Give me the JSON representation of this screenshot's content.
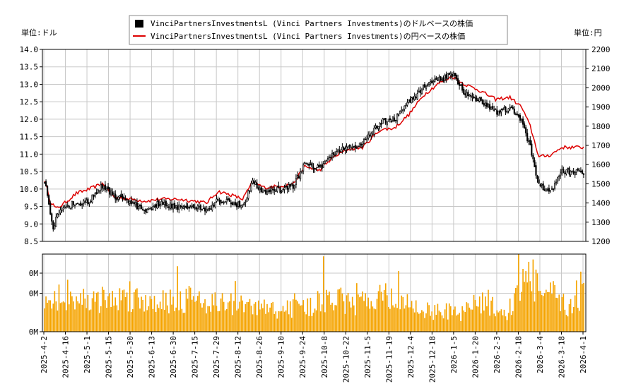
{
  "chart_data": [
    {
      "type": "candlestick",
      "legend": {
        "placement": "top-center",
        "items": [
          {
            "label": "VinciPartnersInvestmentsL (Vinci Partners Investments)のドルベースの株価",
            "color": "#000000",
            "marker": "square"
          },
          {
            "label": "VinciPartnersInvestmentsL (Vinci Partners Investments)の円ベースの株価",
            "color": "#dd0000",
            "marker": "line"
          }
        ]
      },
      "y_left_label": "単位:ドル",
      "y_right_label": "単位:円",
      "y_left_ticks": [
        "8.5",
        "9.0",
        "9.5",
        "10.0",
        "10.5",
        "11.0",
        "11.5",
        "12.0",
        "12.5",
        "13.0",
        "13.5",
        "14.0"
      ],
      "y_left_range": [
        8.5,
        14.0
      ],
      "y_right_ticks": [
        "1200",
        "1300",
        "1400",
        "1500",
        "1600",
        "1700",
        "1800",
        "1900",
        "2000",
        "2100",
        "2200"
      ],
      "y_right_range": [
        1200,
        2200
      ],
      "x_tick_labels": [
        "2025-4-2",
        "2025-4-16",
        "2025-5-1",
        "2025-5-15",
        "2025-5-30",
        "2025-6-13",
        "2025-6-30",
        "2025-7-15",
        "2025-7-29",
        "2025-8-12",
        "2025-8-26",
        "2025-9-10",
        "2025-9-24",
        "2025-10-8",
        "2025-10-22",
        "2025-11-5",
        "2025-11-19",
        "2025-12-4",
        "2025-12-18",
        "2026-1-5",
        "2026-1-20",
        "2026-2-3",
        "2026-2-18",
        "2026-3-4",
        "2026-3-18",
        "2026-4-1"
      ],
      "usd_close_keypoints": [
        [
          0,
          10.2
        ],
        [
          3,
          9.6
        ],
        [
          6,
          8.9
        ],
        [
          9,
          9.3
        ],
        [
          14,
          9.4
        ],
        [
          20,
          9.6
        ],
        [
          30,
          9.6
        ],
        [
          40,
          10.1
        ],
        [
          48,
          9.8
        ],
        [
          60,
          9.6
        ],
        [
          70,
          9.4
        ],
        [
          80,
          9.6
        ],
        [
          92,
          9.5
        ],
        [
          104,
          9.5
        ],
        [
          112,
          9.4
        ],
        [
          120,
          9.7
        ],
        [
          130,
          9.6
        ],
        [
          137,
          9.5
        ],
        [
          144,
          10.2
        ],
        [
          152,
          9.9
        ],
        [
          165,
          10.0
        ],
        [
          172,
          10.1
        ],
        [
          180,
          10.7
        ],
        [
          190,
          10.6
        ],
        [
          200,
          11.0
        ],
        [
          210,
          11.2
        ],
        [
          220,
          11.3
        ],
        [
          232,
          11.9
        ],
        [
          242,
          12.0
        ],
        [
          252,
          12.5
        ],
        [
          262,
          12.9
        ],
        [
          272,
          13.1
        ],
        [
          282,
          13.3
        ],
        [
          290,
          12.8
        ],
        [
          300,
          12.6
        ],
        [
          312,
          12.2
        ],
        [
          322,
          12.3
        ],
        [
          330,
          12.0
        ],
        [
          336,
          11.2
        ],
        [
          342,
          10.1
        ],
        [
          350,
          9.9
        ],
        [
          358,
          10.5
        ]
      ],
      "jpy_close_keypoints": [
        [
          0,
          1520
        ],
        [
          4,
          1410
        ],
        [
          8,
          1370
        ],
        [
          14,
          1400
        ],
        [
          22,
          1450
        ],
        [
          30,
          1470
        ],
        [
          40,
          1500
        ],
        [
          48,
          1430
        ],
        [
          60,
          1420
        ],
        [
          70,
          1410
        ],
        [
          80,
          1420
        ],
        [
          92,
          1420
        ],
        [
          104,
          1410
        ],
        [
          112,
          1400
        ],
        [
          120,
          1460
        ],
        [
          130,
          1440
        ],
        [
          137,
          1420
        ],
        [
          144,
          1510
        ],
        [
          152,
          1480
        ],
        [
          165,
          1490
        ],
        [
          172,
          1500
        ],
        [
          180,
          1590
        ],
        [
          190,
          1570
        ],
        [
          200,
          1640
        ],
        [
          210,
          1680
        ],
        [
          220,
          1690
        ],
        [
          232,
          1780
        ],
        [
          242,
          1790
        ],
        [
          252,
          1860
        ],
        [
          262,
          1960
        ],
        [
          272,
          2020
        ],
        [
          282,
          2060
        ],
        [
          290,
          2020
        ],
        [
          300,
          1990
        ],
        [
          312,
          1940
        ],
        [
          322,
          1950
        ],
        [
          330,
          1900
        ],
        [
          336,
          1800
        ],
        [
          342,
          1640
        ],
        [
          350,
          1650
        ],
        [
          358,
          1690
        ]
      ],
      "volume_axis": {
        "tick_labels": [
          "0M",
          "0M",
          "0M"
        ]
      },
      "volume_bars_keypoints": [
        [
          0,
          0.4
        ],
        [
          10,
          0.5
        ],
        [
          12,
          0.62
        ],
        [
          30,
          0.48
        ],
        [
          42,
          0.52
        ],
        [
          56,
          0.55
        ],
        [
          76,
          0.5
        ],
        [
          104,
          0.54
        ],
        [
          124,
          0.45
        ],
        [
          162,
          0.35
        ],
        [
          182,
          0.4
        ],
        [
          200,
          0.55
        ],
        [
          216,
          0.4
        ],
        [
          228,
          0.62
        ],
        [
          262,
          0.35
        ],
        [
          290,
          0.3
        ],
        [
          300,
          0.5
        ],
        [
          320,
          0.3
        ],
        [
          330,
          0.75
        ],
        [
          334,
          1.0
        ],
        [
          344,
          0.6
        ],
        [
          352,
          0.58
        ],
        [
          356,
          0.45
        ],
        [
          362,
          0.4
        ],
        [
          371,
          0.58
        ]
      ],
      "colors": {
        "candle": "#000000",
        "jpy_line": "#dd0000",
        "volume": "#f5a400",
        "grid": "#c8c8c8"
      }
    }
  ]
}
